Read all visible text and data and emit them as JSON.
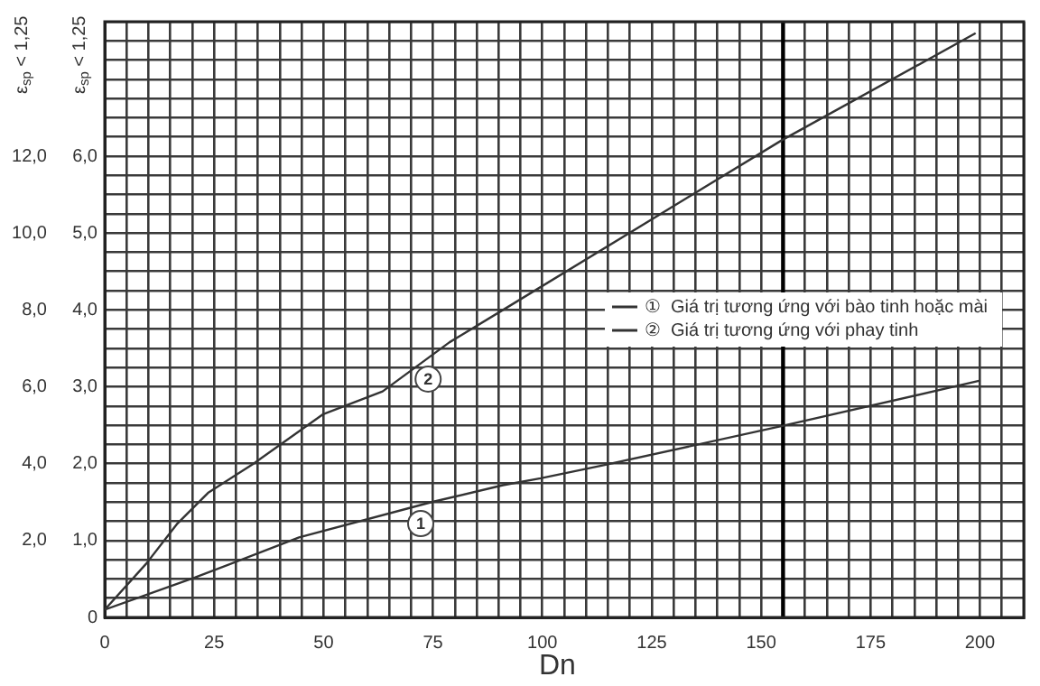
{
  "chart_data": {
    "type": "line",
    "xlabel": "Dn",
    "ylabel": "ε$_{sp}$ < 1,25",
    "y2label": "ε$_{sp}$ < 1,25",
    "series": [
      {
        "name": "①  Giá trị tương ứng với bào tinh hoặc mài",
        "color": "#333333",
        "x": [
          0,
          20.7,
          44.4,
          74.7,
          91,
          99.6,
          114,
          154.8,
          200
        ],
        "values": [
          0.1,
          0.52,
          1.04,
          1.5,
          1.72,
          1.81,
          1.98,
          2.49,
          3.08
        ]
      },
      {
        "name": "②  Giá trị tương ứng với phay tinh",
        "color": "#333333",
        "x": [
          0,
          9.5,
          16.6,
          23.6,
          34,
          49.8,
          63.5,
          78.8,
          91,
          154.8,
          199
        ],
        "values": [
          0.1,
          0.7,
          1.22,
          1.62,
          2.0,
          2.64,
          2.94,
          3.58,
          4.0,
          6.21,
          7.6
        ]
      }
    ],
    "annotations": [
      {
        "text": "1",
        "x": 72.2,
        "y": 1.22
      },
      {
        "text": "2",
        "x": 73.9,
        "y": 3.1
      }
    ],
    "ref_lines": [
      {
        "axis": "x",
        "value": 155,
        "color": "#000000"
      }
    ],
    "xlim": [
      0,
      210
    ],
    "xticks": [
      0,
      {
        "value": 5,
        "label": null
      },
      {
        "value": 10,
        "label": null
      },
      {
        "value": 15,
        "label": null
      },
      {
        "value": 20,
        "label": null
      },
      25,
      {
        "value": 30,
        "label": null
      },
      {
        "value": 35,
        "label": null
      },
      {
        "value": 40,
        "label": null
      },
      {
        "value": 45,
        "label": null
      },
      50,
      {
        "value": 55,
        "label": null
      },
      {
        "value": 60,
        "label": null
      },
      {
        "value": 65,
        "label": null
      },
      {
        "value": 70,
        "label": null
      },
      75,
      {
        "value": 80,
        "label": null
      },
      {
        "value": 85,
        "label": null
      },
      {
        "value": 90,
        "label": null
      },
      {
        "value": 95,
        "label": null
      },
      100,
      {
        "value": 105,
        "label": null
      },
      {
        "value": 110,
        "label": null
      },
      {
        "value": 115,
        "label": null
      },
      {
        "value": 120,
        "label": null
      },
      125,
      {
        "value": 130,
        "label": null
      },
      {
        "value": 135,
        "label": null
      },
      {
        "value": 140,
        "label": null
      },
      {
        "value": 145,
        "label": null
      },
      150,
      {
        "value": 155,
        "label": null
      },
      {
        "value": 160,
        "label": null
      },
      {
        "value": 165,
        "label": null
      },
      {
        "value": 170,
        "label": null
      },
      175,
      {
        "value": 180,
        "label": null
      },
      {
        "value": 185,
        "label": null
      },
      {
        "value": 190,
        "label": null
      },
      {
        "value": 195,
        "label": null
      },
      200,
      {
        "value": 205,
        "label": null
      },
      {
        "value": 210,
        "label": null
      }
    ],
    "ylim": [
      0,
      7.75
    ],
    "yticks": [
      0,
      {
        "value": 0.25,
        "label": null
      },
      {
        "value": 0.5,
        "label": null
      },
      {
        "value": 0.75,
        "label": null
      },
      {
        "value": 1,
        "label": "1,0"
      },
      {
        "value": 1.25,
        "label": null
      },
      {
        "value": 1.5,
        "label": null
      },
      {
        "value": 1.75,
        "label": null
      },
      {
        "value": 2,
        "label": "2,0"
      },
      {
        "value": 2.25,
        "label": null
      },
      {
        "value": 2.5,
        "label": null
      },
      {
        "value": 2.75,
        "label": null
      },
      {
        "value": 3,
        "label": "3,0"
      },
      {
        "value": 3.25,
        "label": null
      },
      {
        "value": 3.5,
        "label": null
      },
      {
        "value": 3.75,
        "label": null
      },
      {
        "value": 4,
        "label": "4,0"
      },
      {
        "value": 4.25,
        "label": null
      },
      {
        "value": 4.5,
        "label": null
      },
      {
        "value": 4.75,
        "label": null
      },
      {
        "value": 5,
        "label": "5,0"
      },
      {
        "value": 5.25,
        "label": null
      },
      {
        "value": 5.5,
        "label": null
      },
      {
        "value": 5.75,
        "label": null
      },
      {
        "value": 6,
        "label": "6,0"
      },
      {
        "value": 6.25,
        "label": null
      },
      {
        "value": 6.5,
        "label": null
      },
      {
        "value": 6.75,
        "label": null
      },
      {
        "value": 7,
        "label": null
      },
      {
        "value": 7.25,
        "label": null
      },
      {
        "value": 7.5,
        "label": null
      },
      {
        "value": 7.75,
        "label": null
      }
    ],
    "y2lim": [
      0,
      15.5
    ],
    "y2ticks": [
      {
        "value": 2,
        "label": "2,0"
      },
      {
        "value": 4,
        "label": "4,0"
      },
      {
        "value": 6,
        "label": "6,0"
      },
      {
        "value": 8,
        "label": "8,0"
      },
      {
        "value": 10,
        "label": "10,0"
      },
      {
        "value": 12,
        "label": "12,0"
      }
    ],
    "grid": true,
    "legend": "right",
    "marker": "none",
    "line_style": "solid"
  }
}
